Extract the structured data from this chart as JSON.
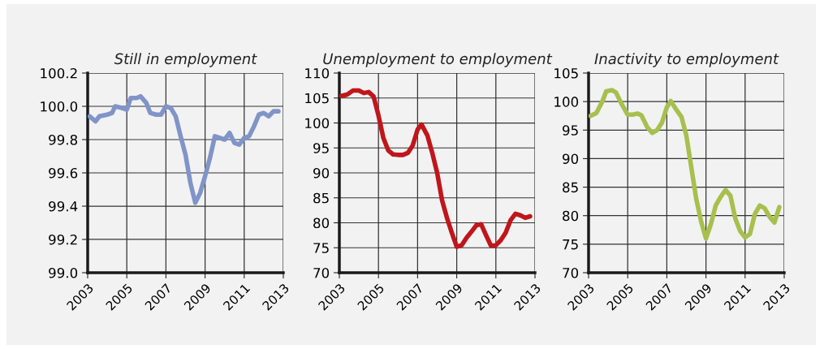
{
  "chart_data": [
    {
      "type": "line",
      "title": "Still in employment",
      "xlim": [
        2003,
        2013
      ],
      "xticks": [
        2003,
        2005,
        2007,
        2009,
        2011,
        2013
      ],
      "ylim": [
        99.0,
        100.2
      ],
      "yticks": [
        {
          "value": 99.0,
          "label": "99.0"
        },
        99.2,
        99.4,
        99.6,
        99.8,
        {
          "value": 100.0,
          "label": "100.0"
        },
        100.2
      ],
      "grid": true,
      "series": [
        {
          "color": "#8094c8",
          "x": [
            2003.1,
            2003.4,
            2003.6,
            2004.0,
            2004.25,
            2004.4,
            2004.75,
            2005.0,
            2005.2,
            2005.5,
            2005.7,
            2006.0,
            2006.2,
            2006.5,
            2006.75,
            2007.0,
            2007.25,
            2007.5,
            2007.75,
            2008.0,
            2008.25,
            2008.5,
            2008.75,
            2009.0,
            2009.25,
            2009.5,
            2009.75,
            2010.0,
            2010.25,
            2010.5,
            2010.75,
            2011.0,
            2011.25,
            2011.5,
            2011.75,
            2012.0,
            2012.25,
            2012.5,
            2012.75
          ],
          "values": [
            99.94,
            99.91,
            99.94,
            99.95,
            99.96,
            100.0,
            99.99,
            99.98,
            100.05,
            100.05,
            100.06,
            100.02,
            99.96,
            99.95,
            99.95,
            100.0,
            99.99,
            99.94,
            99.82,
            99.71,
            99.54,
            99.42,
            99.48,
            99.58,
            99.69,
            99.82,
            99.81,
            99.8,
            99.84,
            99.78,
            99.77,
            99.81,
            99.82,
            99.88,
            99.95,
            99.96,
            99.94,
            99.97,
            99.97
          ]
        }
      ]
    },
    {
      "type": "line",
      "title": "Unemployment to employment",
      "xlim": [
        2003,
        2013
      ],
      "xticks": [
        2003,
        2005,
        2007,
        2009,
        2011,
        2013
      ],
      "ylim": [
        70,
        110
      ],
      "yticks": [
        70,
        75,
        80,
        85,
        90,
        95,
        100,
        105,
        110
      ],
      "grid": true,
      "series": [
        {
          "color": "#c0161b",
          "x": [
            2003.1,
            2003.4,
            2003.7,
            2004.0,
            2004.25,
            2004.5,
            2004.75,
            2005.0,
            2005.25,
            2005.5,
            2005.75,
            2006.0,
            2006.25,
            2006.5,
            2006.75,
            2007.0,
            2007.2,
            2007.5,
            2007.75,
            2008.0,
            2008.25,
            2008.5,
            2008.75,
            2009.0,
            2009.25,
            2009.5,
            2009.75,
            2010.0,
            2010.25,
            2010.5,
            2010.75,
            2011.0,
            2011.25,
            2011.5,
            2011.75,
            2012.0,
            2012.25,
            2012.5,
            2012.75
          ],
          "values": [
            105.4,
            105.7,
            106.5,
            106.5,
            106.0,
            106.2,
            105.3,
            101.5,
            97.0,
            94.5,
            93.7,
            93.6,
            93.6,
            94.0,
            95.5,
            98.7,
            99.7,
            97.5,
            94.0,
            90.0,
            84.5,
            81.0,
            78.0,
            75.2,
            75.5,
            77.0,
            78.2,
            79.5,
            79.7,
            77.5,
            75.4,
            75.5,
            76.5,
            78.0,
            80.5,
            81.8,
            81.5,
            81.0,
            81.3
          ]
        }
      ]
    },
    {
      "type": "line",
      "title": "Inactivity to employment",
      "xlim": [
        2003,
        2013
      ],
      "xticks": [
        2003,
        2005,
        2007,
        2009,
        2011,
        2013
      ],
      "ylim": [
        70,
        105
      ],
      "yticks": [
        70,
        75,
        80,
        85,
        90,
        95,
        100,
        105
      ],
      "grid": true,
      "series": [
        {
          "color": "#a8bf4e",
          "x": [
            2003.1,
            2003.4,
            2003.7,
            2003.9,
            2004.2,
            2004.4,
            2004.7,
            2005.0,
            2005.25,
            2005.5,
            2005.7,
            2006.0,
            2006.25,
            2006.5,
            2006.75,
            2007.0,
            2007.2,
            2007.5,
            2007.75,
            2008.0,
            2008.25,
            2008.5,
            2008.75,
            2009.0,
            2009.25,
            2009.5,
            2009.75,
            2010.0,
            2010.25,
            2010.5,
            2010.75,
            2011.0,
            2011.25,
            2011.5,
            2011.75,
            2012.0,
            2012.25,
            2012.5,
            2012.75
          ],
          "values": [
            97.5,
            98.0,
            100.0,
            101.8,
            102.0,
            101.6,
            99.5,
            97.7,
            97.7,
            97.9,
            97.6,
            95.5,
            94.5,
            95.0,
            96.3,
            99.0,
            100.1,
            98.5,
            97.3,
            94.0,
            88.5,
            83.0,
            79.0,
            76.0,
            78.5,
            81.8,
            83.3,
            84.5,
            83.5,
            79.5,
            77.3,
            76.2,
            76.8,
            80.3,
            81.8,
            81.3,
            79.8,
            78.8,
            81.5
          ]
        }
      ]
    }
  ]
}
